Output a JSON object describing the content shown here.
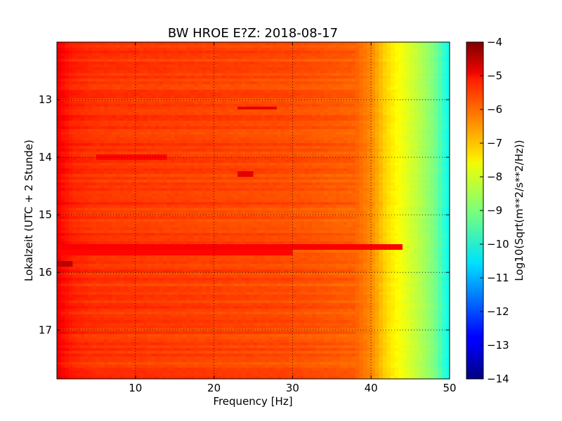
{
  "chart_data": {
    "type": "heatmap",
    "title": "BW HROE E?Z: 2018-08-17",
    "xlabel": "Frequency [Hz]",
    "ylabel": "Lokalzeit (UTC + 2 Stunde)",
    "xlim": [
      0,
      50
    ],
    "ylim": [
      12.0,
      17.85
    ],
    "y_inverted": true,
    "x_ticks": [
      10,
      20,
      30,
      40,
      50
    ],
    "x_tick_labels": [
      "10",
      "20",
      "30",
      "40",
      "50"
    ],
    "y_ticks": [
      13,
      14,
      15,
      16,
      17
    ],
    "y_tick_labels": [
      "13",
      "14",
      "15",
      "16",
      "17"
    ],
    "grid": true,
    "colormap": "jet",
    "colorbar": {
      "label": "Log10(Sqrt(m**2/s**2/Hz))",
      "range": [
        -14,
        -4
      ],
      "ticks": [
        -4,
        -5,
        -6,
        -7,
        -8,
        -9,
        -10,
        -11,
        -12,
        -13,
        -14
      ],
      "tick_labels": [
        "−4",
        "−5",
        "−6",
        "−7",
        "−8",
        "−9",
        "−10",
        "−11",
        "−12",
        "−13",
        "−14"
      ]
    },
    "frequency_profile": {
      "frequency_hz": [
        0,
        0.5,
        2,
        5,
        10,
        20,
        30,
        38,
        40,
        42,
        44,
        46,
        48,
        49,
        50
      ],
      "log10_amplitude": [
        -5.0,
        -5.3,
        -5.6,
        -5.75,
        -5.8,
        -5.9,
        -6.0,
        -6.2,
        -6.6,
        -7.4,
        -7.9,
        -8.4,
        -9.0,
        -9.6,
        -10.2
      ]
    },
    "features": [
      {
        "time": 15.85,
        "freq_range": [
          0.2,
          1.8
        ],
        "log10_amplitude": -4.6
      },
      {
        "time": 15.55,
        "freq_range": [
          0,
          44
        ],
        "log10_amplitude": -5.2
      },
      {
        "time": 15.65,
        "freq_range": [
          0,
          30
        ],
        "log10_amplitude": -5.3
      },
      {
        "time": 13.15,
        "freq_range": [
          23,
          28
        ],
        "log10_amplitude": -5.0
      },
      {
        "time": 14.0,
        "freq_range": [
          5,
          14
        ],
        "log10_amplitude": -5.3
      },
      {
        "time": 14.3,
        "freq_range": [
          23,
          25
        ],
        "log10_amplitude": -5.0
      }
    ]
  }
}
